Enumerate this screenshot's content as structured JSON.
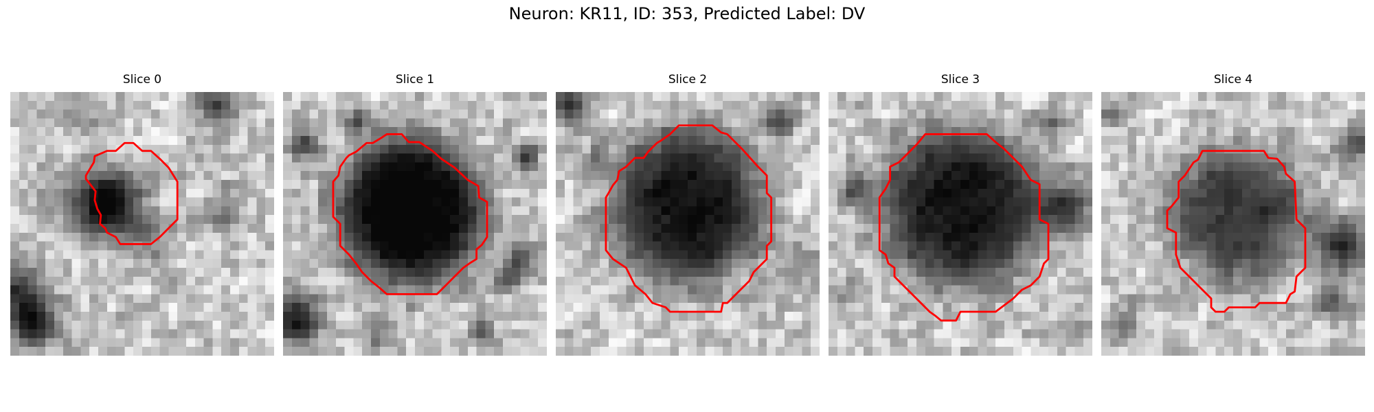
{
  "figure": {
    "title": "Neuron: KR11, ID: 353, Predicted Label: DV"
  },
  "slices": [
    {
      "title": "Slice 0"
    },
    {
      "title": "Slice 1"
    },
    {
      "title": "Slice 2"
    },
    {
      "title": "Slice 3"
    },
    {
      "title": "Slice 4"
    }
  ],
  "colors": {
    "contour": "#ff0000",
    "colormap": "gray"
  }
}
